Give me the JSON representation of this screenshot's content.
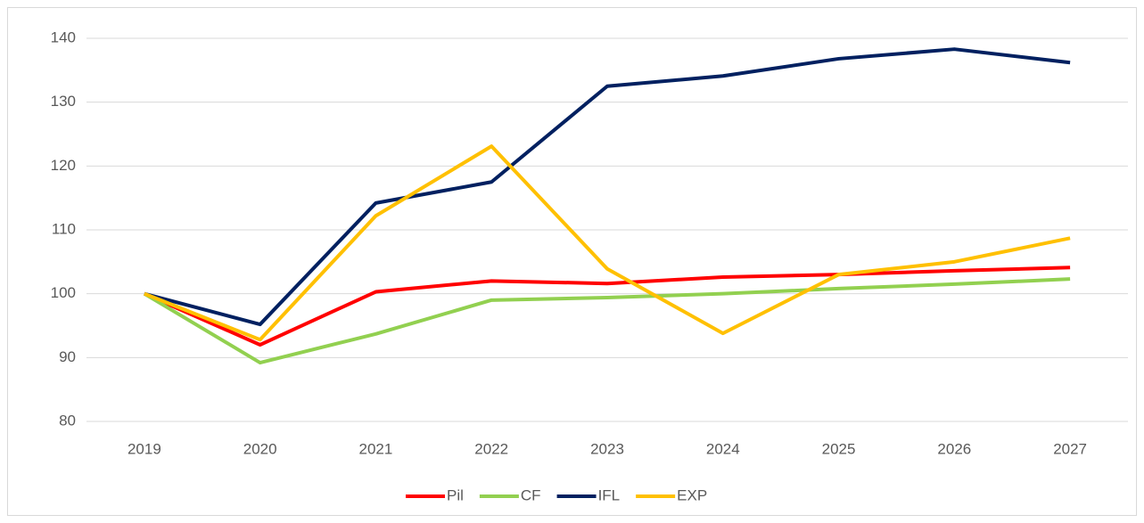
{
  "chart_data": {
    "type": "line",
    "categories": [
      "2019",
      "2020",
      "2021",
      "2022",
      "2023",
      "2024",
      "2025",
      "2026",
      "2027"
    ],
    "series": [
      {
        "name": "Pil",
        "color": "#ff0000",
        "values": [
          100,
          92,
          100.3,
          102,
          101.6,
          102.6,
          103,
          103.6,
          104.1
        ]
      },
      {
        "name": "CF",
        "color": "#92d050",
        "values": [
          100,
          89.2,
          93.7,
          99,
          99.4,
          100,
          100.8,
          101.5,
          102.3
        ]
      },
      {
        "name": "IFL",
        "color": "#002060",
        "values": [
          100,
          95.2,
          114.2,
          117.5,
          132.5,
          134.1,
          136.8,
          138.3,
          136.2
        ]
      },
      {
        "name": "EXP",
        "color": "#ffc000",
        "values": [
          100,
          92.8,
          112.2,
          123.1,
          103.9,
          93.8,
          103,
          105,
          108.7
        ]
      }
    ],
    "ylim": [
      80,
      140
    ],
    "yticks": [
      80,
      90,
      100,
      110,
      120,
      130,
      140
    ],
    "grid": true,
    "legend": "bottom"
  }
}
